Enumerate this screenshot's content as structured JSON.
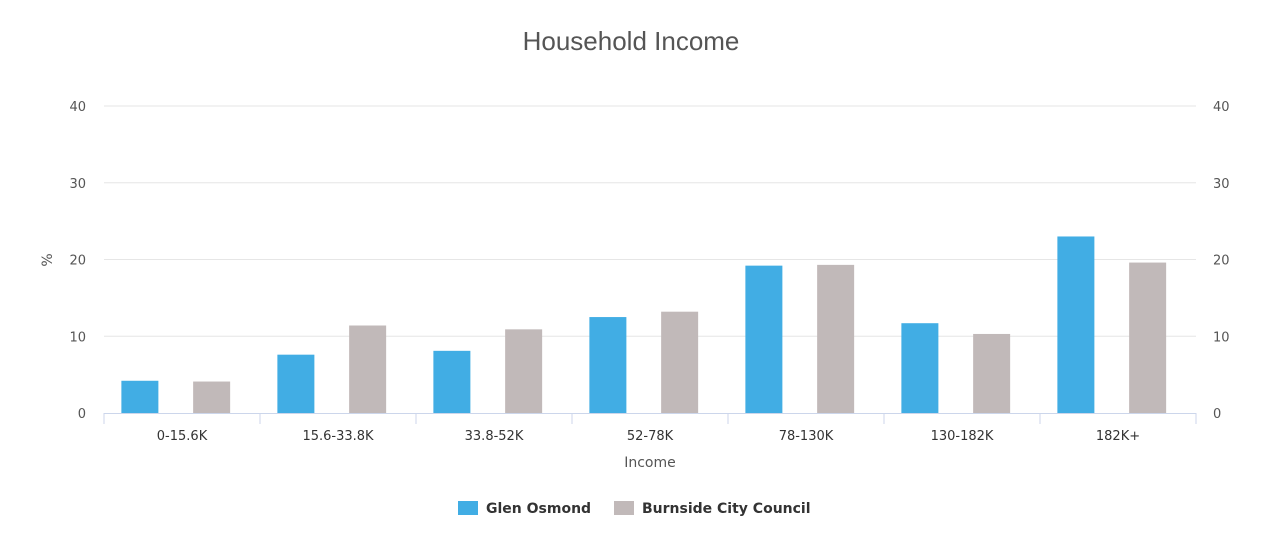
{
  "chart_data": {
    "type": "bar",
    "title": "Household Income",
    "xlabel": "Income",
    "ylabel": "%",
    "ylim": [
      0,
      40
    ],
    "yticks": [
      0,
      10,
      20,
      30,
      40
    ],
    "secondary_yticks": [
      0,
      10,
      20,
      30,
      40
    ],
    "grid": true,
    "legend_position": "bottom",
    "categories": [
      "0-15.6K",
      "15.6-33.8K",
      "33.8-52K",
      "52-78K",
      "78-130K",
      "130-182K",
      "182K+"
    ],
    "series": [
      {
        "name": "Glen Osmond",
        "color": "#41ade4",
        "values": [
          4.2,
          7.6,
          8.1,
          12.5,
          19.2,
          11.7,
          23.0
        ]
      },
      {
        "name": "Burnside City Council",
        "color": "#c1b9b9",
        "values": [
          4.1,
          11.4,
          10.9,
          13.2,
          19.3,
          10.3,
          19.6
        ]
      }
    ]
  }
}
